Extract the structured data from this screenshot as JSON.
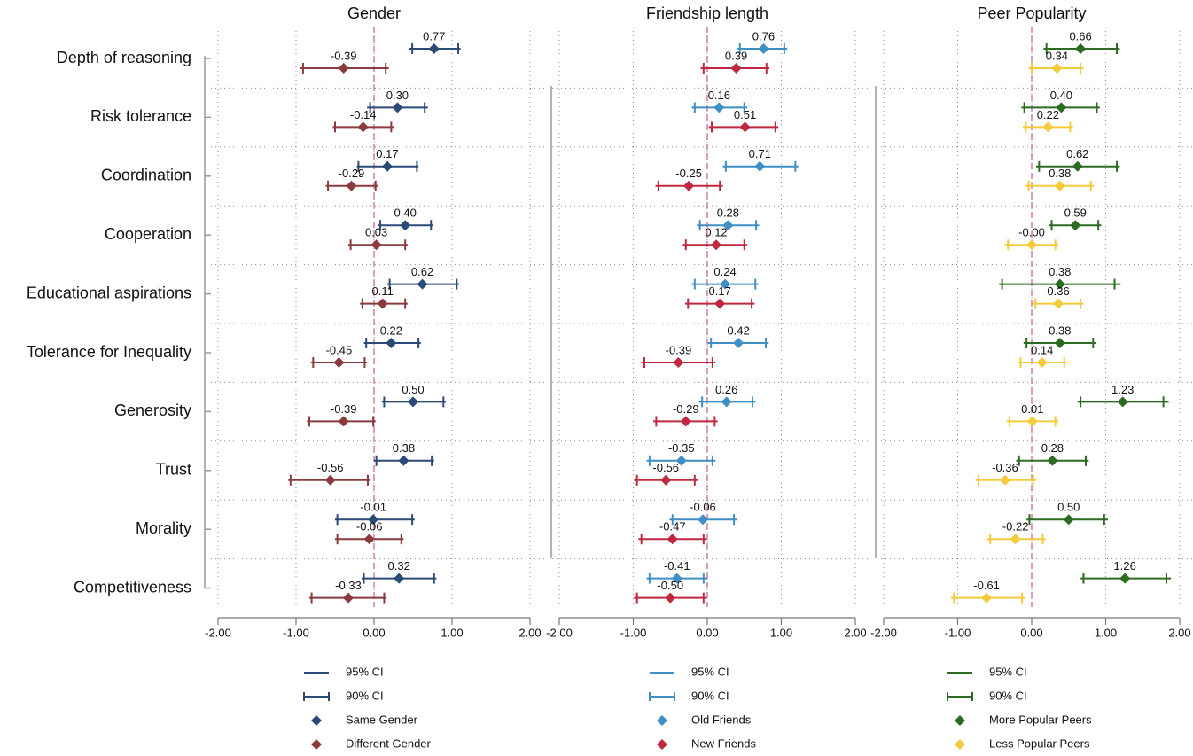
{
  "chart_data": [
    {
      "type": "coefficient",
      "title": "Gender",
      "categories": [
        "Depth of reasoning",
        "Risk tolerance",
        "Coordination",
        "Cooperation",
        "Educational aspirations",
        "Tolerance for Inequality",
        "Generosity",
        "Trust",
        "Morality",
        "Competitiveness"
      ],
      "xlim": [
        -2,
        2
      ],
      "xticks": [
        {
          "value": -2,
          "label": "-2.00"
        },
        {
          "value": -1,
          "label": "-1.00"
        },
        {
          "value": 0,
          "label": "0.00"
        },
        {
          "value": 1,
          "label": "1.00"
        },
        {
          "value": 2,
          "label": "2.00"
        }
      ],
      "legend_labels": [
        "95% CI",
        "90% CI"
      ],
      "series": [
        {
          "name": "Same Gender",
          "color": "#2b4a78",
          "values": [
            0.77,
            0.3,
            0.17,
            0.4,
            0.62,
            0.22,
            0.5,
            0.38,
            -0.01,
            0.32
          ],
          "value_labels": [
            "0.77",
            "0.30",
            "0.17",
            "0.40",
            "0.62",
            "0.22",
            "0.50",
            "0.38",
            "-0.01",
            "0.32"
          ],
          "ci95": [
            [
              0.45,
              1.11
            ],
            [
              -0.09,
              0.69
            ],
            [
              -0.22,
              0.57
            ],
            [
              0.05,
              0.76
            ],
            [
              0.17,
              1.09
            ],
            [
              -0.13,
              0.6
            ],
            [
              0.1,
              0.92
            ],
            [
              0.0,
              0.77
            ],
            [
              -0.5,
              0.52
            ],
            [
              -0.16,
              0.8
            ]
          ],
          "ci90": [
            [
              0.49,
              1.08
            ],
            [
              -0.05,
              0.65
            ],
            [
              -0.2,
              0.55
            ],
            [
              0.08,
              0.73
            ],
            [
              0.2,
              1.06
            ],
            [
              -0.1,
              0.57
            ],
            [
              0.13,
              0.89
            ],
            [
              0.03,
              0.74
            ],
            [
              -0.47,
              0.49
            ],
            [
              -0.13,
              0.77
            ]
          ]
        },
        {
          "name": "Different Gender",
          "color": "#8b3a3e",
          "values": [
            -0.39,
            -0.14,
            -0.29,
            0.03,
            0.11,
            -0.45,
            -0.39,
            -0.56,
            -0.06,
            -0.33
          ],
          "value_labels": [
            "-0.39",
            "-0.14",
            "-0.29",
            "0.03",
            "0.11",
            "-0.45",
            "-0.39",
            "-0.56",
            "-0.06",
            "-0.33"
          ],
          "ci95": [
            [
              -0.95,
              0.19
            ],
            [
              -0.53,
              0.25
            ],
            [
              -0.62,
              0.05
            ],
            [
              -0.33,
              0.43
            ],
            [
              -0.18,
              0.43
            ],
            [
              -0.81,
              -0.09
            ],
            [
              -0.86,
              0.02
            ],
            [
              -1.1,
              -0.05
            ],
            [
              -0.5,
              0.38
            ],
            [
              -0.83,
              0.16
            ]
          ],
          "ci90": [
            [
              -0.91,
              0.15
            ],
            [
              -0.5,
              0.22
            ],
            [
              -0.59,
              0.02
            ],
            [
              -0.3,
              0.4
            ],
            [
              -0.15,
              0.4
            ],
            [
              -0.78,
              -0.12
            ],
            [
              -0.83,
              -0.01
            ],
            [
              -1.07,
              -0.08
            ],
            [
              -0.47,
              0.35
            ],
            [
              -0.8,
              0.13
            ]
          ]
        }
      ]
    },
    {
      "type": "coefficient",
      "title": "Friendship length",
      "xlim": [
        -2,
        2
      ],
      "xticks": [
        {
          "value": -2,
          "label": "-2.00"
        },
        {
          "value": -1,
          "label": "-1.00"
        },
        {
          "value": 0,
          "label": "0.00"
        },
        {
          "value": 1,
          "label": "1.00"
        },
        {
          "value": 2,
          "label": "2.00"
        }
      ],
      "legend_labels": [
        "95% CI",
        "90% CI"
      ],
      "series": [
        {
          "name": "Old Friends",
          "color": "#3f8fc5",
          "values": [
            0.76,
            0.16,
            0.71,
            0.28,
            0.24,
            0.42,
            0.26,
            -0.35,
            -0.06,
            -0.41
          ],
          "value_labels": [
            "0.76",
            "0.16",
            "0.71",
            "0.28",
            "0.24",
            "0.42",
            "0.26",
            "-0.35",
            "-0.06",
            "-0.41"
          ],
          "ci95": [
            [
              0.41,
              1.08
            ],
            [
              -0.21,
              0.54
            ],
            [
              0.21,
              1.23
            ],
            [
              -0.14,
              0.7
            ],
            [
              -0.21,
              0.69
            ],
            [
              0.01,
              0.83
            ],
            [
              -0.11,
              0.65
            ],
            [
              -0.82,
              0.11
            ],
            [
              -0.51,
              0.4
            ],
            [
              -0.82,
              0.0
            ]
          ],
          "ci90": [
            [
              0.44,
              1.04
            ],
            [
              -0.17,
              0.5
            ],
            [
              0.25,
              1.19
            ],
            [
              -0.1,
              0.66
            ],
            [
              -0.17,
              0.65
            ],
            [
              0.05,
              0.79
            ],
            [
              -0.07,
              0.61
            ],
            [
              -0.78,
              0.07
            ],
            [
              -0.47,
              0.36
            ],
            [
              -0.78,
              -0.05
            ]
          ]
        },
        {
          "name": "New Friends",
          "color": "#c0283f",
          "values": [
            0.39,
            0.51,
            -0.25,
            0.12,
            0.17,
            -0.39,
            -0.29,
            -0.56,
            -0.47,
            -0.5
          ],
          "value_labels": [
            "0.39",
            "0.51",
            "-0.25",
            "0.12",
            "0.17",
            "-0.39",
            "-0.29",
            "-0.56",
            "-0.47",
            "-0.50"
          ],
          "ci95": [
            [
              -0.09,
              0.84
            ],
            [
              0.02,
              0.96
            ],
            [
              -0.7,
              0.21
            ],
            [
              -0.33,
              0.54
            ],
            [
              -0.3,
              0.64
            ],
            [
              -0.89,
              0.11
            ],
            [
              -0.73,
              0.14
            ],
            [
              -0.99,
              -0.13
            ],
            [
              -0.93,
              -0.01
            ],
            [
              -0.99,
              -0.01
            ]
          ],
          "ci90": [
            [
              -0.05,
              0.8
            ],
            [
              0.06,
              0.92
            ],
            [
              -0.66,
              0.17
            ],
            [
              -0.29,
              0.5
            ],
            [
              -0.26,
              0.6
            ],
            [
              -0.85,
              0.07
            ],
            [
              -0.69,
              0.1
            ],
            [
              -0.95,
              -0.17
            ],
            [
              -0.89,
              -0.05
            ],
            [
              -0.95,
              -0.05
            ]
          ]
        }
      ]
    },
    {
      "type": "coefficient",
      "title": "Peer Popularity",
      "xlim": [
        -2,
        2
      ],
      "xticks": [
        {
          "value": -2,
          "label": "-2.00"
        },
        {
          "value": -1,
          "label": "-1.00"
        },
        {
          "value": 0,
          "label": "0.00"
        },
        {
          "value": 1,
          "label": "1.00"
        },
        {
          "value": 2,
          "label": "2.00"
        }
      ],
      "legend_labels": [
        "95% CI",
        "90% CI"
      ],
      "series": [
        {
          "name": "More Popular Peers",
          "color": "#2e6b22",
          "values": [
            0.66,
            0.4,
            0.62,
            0.59,
            0.38,
            0.38,
            1.23,
            0.28,
            0.5,
            1.26
          ],
          "value_labels": [
            "0.66",
            "0.40",
            "0.62",
            "0.59",
            "0.38",
            "0.38",
            "1.23",
            "0.28",
            "0.50",
            "1.26"
          ],
          "ci95": [
            [
              0.16,
              1.19
            ],
            [
              -0.14,
              0.92
            ],
            [
              0.06,
              1.19
            ],
            [
              0.23,
              0.94
            ],
            [
              -0.44,
              1.2
            ],
            [
              -0.11,
              0.87
            ],
            [
              0.62,
              1.85
            ],
            [
              -0.21,
              0.77
            ],
            [
              -0.07,
              1.03
            ],
            [
              0.66,
              1.88
            ]
          ],
          "ci90": [
            [
              0.2,
              1.15
            ],
            [
              -0.1,
              0.88
            ],
            [
              0.1,
              1.15
            ],
            [
              0.27,
              0.9
            ],
            [
              -0.4,
              1.12
            ],
            [
              -0.07,
              0.83
            ],
            [
              0.66,
              1.78
            ],
            [
              -0.17,
              0.73
            ],
            [
              -0.03,
              0.98
            ],
            [
              0.7,
              1.82
            ]
          ]
        },
        {
          "name": "Less Popular Peers",
          "color": "#f5cb3c",
          "values": [
            0.34,
            0.22,
            0.38,
            0,
            0.36,
            0.14,
            0.01,
            -0.36,
            -0.22,
            -0.61
          ],
          "value_labels": [
            "0.34",
            "0.22",
            "0.38",
            "-0.00",
            "0.36",
            "0.14",
            "0.01",
            "-0.36",
            "-0.22",
            "-0.61"
          ],
          "ci95": [
            [
              -0.04,
              0.7
            ],
            [
              -0.12,
              0.56
            ],
            [
              -0.08,
              0.84
            ],
            [
              -0.36,
              0.36
            ],
            [
              0.01,
              0.7
            ],
            [
              -0.19,
              0.48
            ],
            [
              -0.34,
              0.36
            ],
            [
              -0.76,
              0.06
            ],
            [
              -0.6,
              0.19
            ],
            [
              -1.09,
              -0.09
            ]
          ],
          "ci90": [
            [
              0.0,
              0.66
            ],
            [
              -0.08,
              0.52
            ],
            [
              -0.04,
              0.8
            ],
            [
              -0.32,
              0.32
            ],
            [
              0.05,
              0.66
            ],
            [
              -0.15,
              0.44
            ],
            [
              -0.3,
              0.32
            ],
            [
              -0.72,
              0.02
            ],
            [
              -0.56,
              0.15
            ],
            [
              -1.05,
              -0.13
            ]
          ]
        }
      ]
    }
  ]
}
